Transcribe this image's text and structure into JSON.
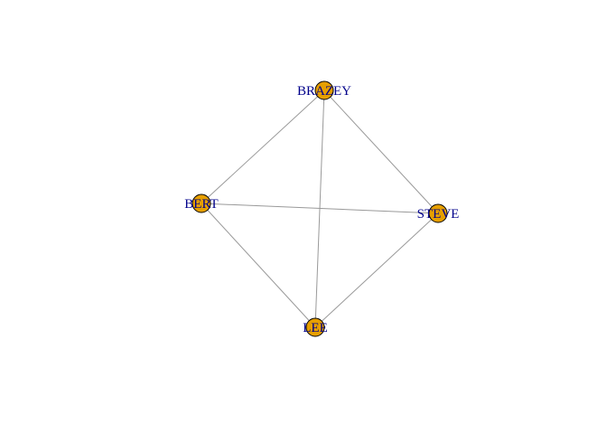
{
  "graph": {
    "directed": false,
    "nodes": [
      {
        "id": "BRAZEY",
        "label": "BRAZEY"
      },
      {
        "id": "BERT",
        "label": "BERT"
      },
      {
        "id": "STEVE",
        "label": "STEVE"
      },
      {
        "id": "LEE",
        "label": "LEE"
      }
    ],
    "edges": [
      {
        "source": "BRAZEY",
        "target": "BERT"
      },
      {
        "source": "BRAZEY",
        "target": "STEVE"
      },
      {
        "source": "BRAZEY",
        "target": "LEE"
      },
      {
        "source": "BERT",
        "target": "STEVE"
      },
      {
        "source": "BERT",
        "target": "LEE"
      },
      {
        "source": "STEVE",
        "target": "LEE"
      }
    ]
  },
  "colors": {
    "node_fill": "#E69F00",
    "node_stroke": "#000000",
    "edge": "#999999",
    "label": "#00008B",
    "background": "#FFFFFF"
  }
}
